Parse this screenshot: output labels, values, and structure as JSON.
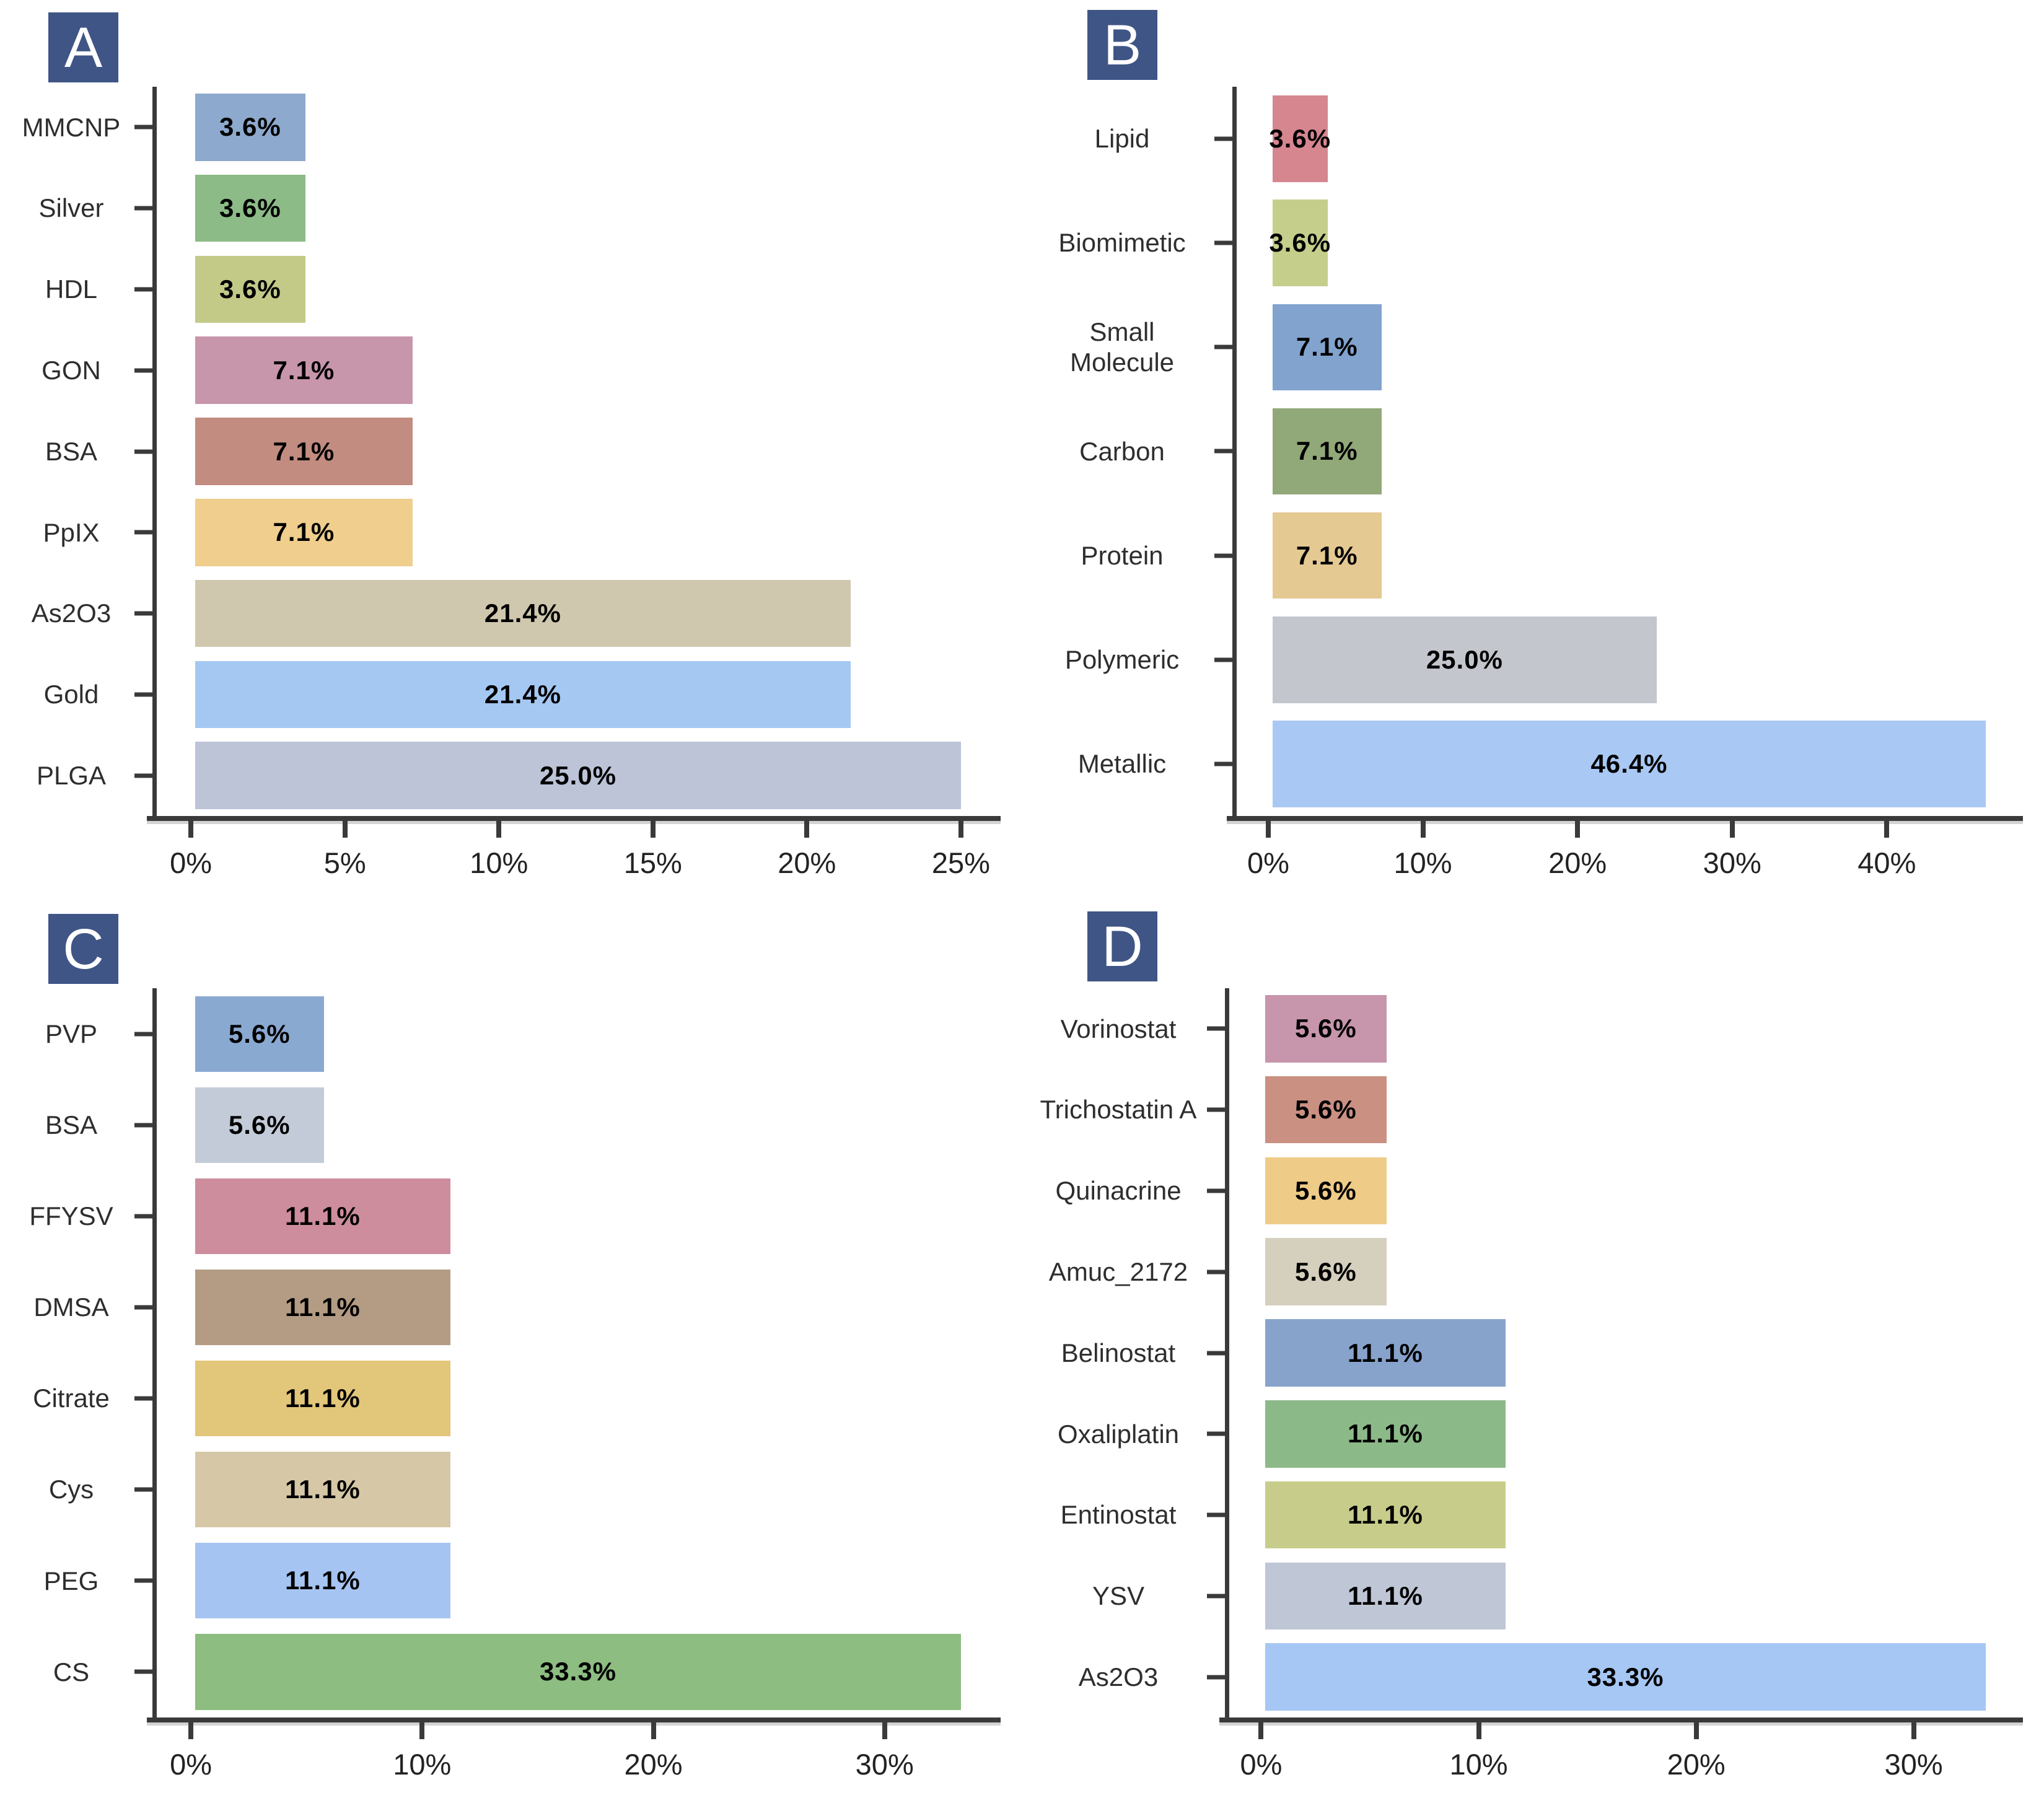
{
  "figure": {
    "background": "#ffffff",
    "panel_label_bg": "#3f5586",
    "panel_label_color": "#ffffff",
    "axis_color": "#3a3a3a",
    "category_label_color": "#2e2e2e",
    "value_label_color": "#000000"
  },
  "chart_data": [
    {
      "type": "bar",
      "orientation": "horizontal",
      "panel": "A",
      "title": "",
      "xlabel": "",
      "ylabel": "",
      "grid": false,
      "legend": false,
      "categories_top_to_bottom": [
        "MMCNP",
        "Silver",
        "HDL",
        "GON",
        "BSA",
        "PpIX",
        "As2O3",
        "Gold",
        "PLGA"
      ],
      "values": [
        3.6,
        3.6,
        3.6,
        7.1,
        7.1,
        7.1,
        21.4,
        21.4,
        25.0
      ],
      "value_labels": [
        "3.6%",
        "3.6%",
        "3.6%",
        "7.1%",
        "7.1%",
        "7.1%",
        "21.4%",
        "21.4%",
        "25.0%"
      ],
      "bar_colors": [
        "#8ea9ce",
        "#8cbb87",
        "#c3ca88",
        "#c796aa",
        "#c28c80",
        "#efce8e",
        "#d0c8ae",
        "#a5c8f3",
        "#bdc4d8"
      ],
      "xmax": 25.0,
      "xlim_displayed": [
        0,
        26.25
      ],
      "xtick_values": [
        0,
        5,
        10,
        15,
        20,
        25
      ],
      "xtick_labels": [
        "0%",
        "5%",
        "10%",
        "15%",
        "20%",
        "25%"
      ]
    },
    {
      "type": "bar",
      "orientation": "horizontal",
      "panel": "B",
      "title": "",
      "xlabel": "",
      "ylabel": "",
      "grid": false,
      "legend": false,
      "categories_top_to_bottom": [
        "Lipid",
        "Biomimetic",
        "Small\nMolecule",
        "Carbon",
        "Protein",
        "Polymeric",
        "Metallic"
      ],
      "values": [
        3.6,
        3.6,
        7.1,
        7.1,
        7.1,
        25.0,
        46.4
      ],
      "value_labels": [
        "3.6%",
        "3.6%",
        "7.1%",
        "7.1%",
        "7.1%",
        "25.0%",
        "46.4%"
      ],
      "bar_colors": [
        "#d5868f",
        "#c5cf8b",
        "#81a3ce",
        "#91a878",
        "#e5c993",
        "#c4c6cd",
        "#a9c8f3"
      ],
      "xmax": 46.4,
      "xlim_displayed": [
        0,
        48.7
      ],
      "xtick_values": [
        0,
        10,
        20,
        30,
        40
      ],
      "xtick_labels": [
        "0%",
        "10%",
        "20%",
        "30%",
        "40%"
      ]
    },
    {
      "type": "bar",
      "orientation": "horizontal",
      "panel": "C",
      "title": "",
      "xlabel": "",
      "ylabel": "",
      "grid": false,
      "legend": false,
      "categories_top_to_bottom": [
        "PVP",
        "BSA",
        "FFYSV",
        "DMSA",
        "Citrate",
        "Cys",
        "PEG",
        "CS"
      ],
      "values": [
        5.6,
        5.6,
        11.1,
        11.1,
        11.1,
        11.1,
        11.1,
        33.3
      ],
      "value_labels": [
        "5.6%",
        "5.6%",
        "11.1%",
        "11.1%",
        "11.1%",
        "11.1%",
        "11.1%",
        "33.3%"
      ],
      "bar_colors": [
        "#8aa9d1",
        "#c4cbd8",
        "#cd8d9d",
        "#b49c84",
        "#e2c67a",
        "#d6c8a6",
        "#a6c4f1",
        "#8dbd81"
      ],
      "xmax": 33.3,
      "xlim_displayed": [
        0,
        35.0
      ],
      "xtick_values": [
        0,
        10,
        20,
        30
      ],
      "xtick_labels": [
        "0%",
        "10%",
        "20%",
        "30%"
      ]
    },
    {
      "type": "bar",
      "orientation": "horizontal",
      "panel": "D",
      "title": "",
      "xlabel": "",
      "ylabel": "",
      "grid": false,
      "legend": false,
      "categories_top_to_bottom": [
        "Vorinostat",
        "Trichostatin A",
        "Quinacrine",
        "Amuc_2172",
        "Belinostat",
        "Oxaliplatin",
        "Entinostat",
        "YSV",
        "As2O3"
      ],
      "values": [
        5.6,
        5.6,
        5.6,
        5.6,
        11.1,
        11.1,
        11.1,
        11.1,
        33.3
      ],
      "value_labels": [
        "5.6%",
        "5.6%",
        "5.6%",
        "5.6%",
        "11.1%",
        "11.1%",
        "11.1%",
        "11.1%",
        "33.3%"
      ],
      "bar_colors": [
        "#c795ac",
        "#ca9082",
        "#eecb87",
        "#d5cfbe",
        "#87a3cc",
        "#8cb988",
        "#c8cc8a",
        "#bfc6d6",
        "#a6c7f3"
      ],
      "xmax": 33.3,
      "xlim_displayed": [
        0,
        35.0
      ],
      "xtick_values": [
        0,
        10,
        20,
        30
      ],
      "xtick_labels": [
        "0%",
        "10%",
        "20%",
        "30%"
      ]
    }
  ]
}
